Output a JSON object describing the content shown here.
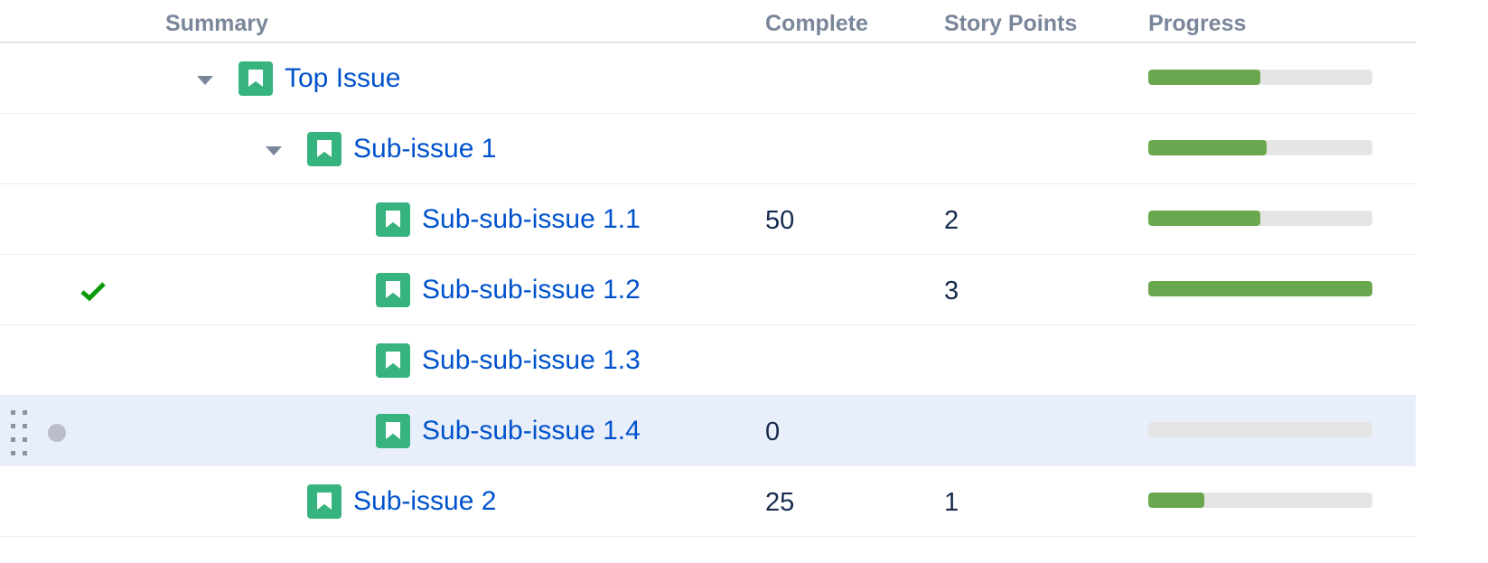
{
  "columns": {
    "summary": "Summary",
    "complete": "Complete",
    "story_points": "Story Points",
    "progress": "Progress"
  },
  "colors": {
    "link": "#0052cc",
    "issue_icon": "#36b37e",
    "progress_fill": "#6aa84f",
    "progress_track": "#e5e5e5",
    "selected_row": "#e9effa",
    "done_check": "#0a9a0a"
  },
  "rows": [
    {
      "title": "Top Issue",
      "level": 0,
      "expandable": true,
      "complete": "",
      "story_points": "",
      "progress": 0.5,
      "icon": "story-bookmark-icon"
    },
    {
      "title": "Sub-issue 1",
      "level": 1,
      "expandable": true,
      "complete": "",
      "story_points": "",
      "progress": 0.53,
      "icon": "story-bookmark-icon"
    },
    {
      "title": "Sub-sub-issue 1.1",
      "level": 2,
      "expandable": false,
      "complete": "50",
      "story_points": "2",
      "progress": 0.5,
      "icon": "story-bookmark-icon"
    },
    {
      "title": "Sub-sub-issue 1.2",
      "level": 2,
      "expandable": false,
      "complete": "",
      "story_points": "3",
      "progress": 1.0,
      "status": "done-check-icon",
      "icon": "story-bookmark-icon"
    },
    {
      "title": "Sub-sub-issue 1.3",
      "level": 2,
      "expandable": false,
      "complete": "",
      "story_points": "",
      "progress": null,
      "icon": "story-bookmark-icon"
    },
    {
      "title": "Sub-sub-issue 1.4",
      "level": 2,
      "expandable": false,
      "complete": "0",
      "story_points": "",
      "progress": 0,
      "selected": true,
      "status": "pending-dot-icon",
      "icon": "story-bookmark-icon"
    },
    {
      "title": "Sub-issue 2",
      "level": 1,
      "expandable": false,
      "complete": "25",
      "story_points": "1",
      "progress": 0.25,
      "icon": "story-bookmark-icon"
    }
  ]
}
